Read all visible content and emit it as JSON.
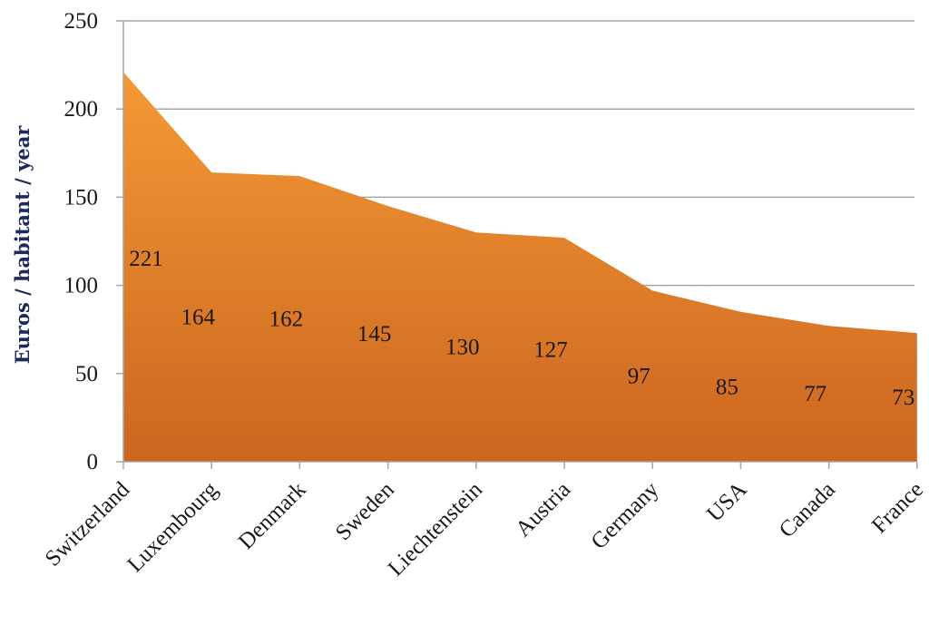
{
  "chart_data": {
    "type": "area",
    "categories": [
      "Switzerland",
      "Luxembourg",
      "Denmark",
      "Sweden",
      "Liechtenstein",
      "Austria",
      "Germany",
      "USA",
      "Canada",
      "France"
    ],
    "values": [
      221,
      164,
      162,
      145,
      130,
      127,
      97,
      85,
      77,
      73
    ],
    "value_labels": [
      "221",
      "164",
      "162",
      "145",
      "130",
      "127",
      "97",
      "85",
      "77",
      "73"
    ],
    "ylabel": "Euros / habitant / year",
    "ylim": [
      0,
      250
    ],
    "yticks": [
      0,
      50,
      100,
      150,
      200,
      250
    ],
    "ytick_labels": [
      "0",
      "50",
      "100",
      "150",
      "200",
      "250"
    ],
    "grid": true,
    "legend": "none",
    "fill_color_top": "#f39a35",
    "fill_color_bottom": "#cc6520"
  }
}
